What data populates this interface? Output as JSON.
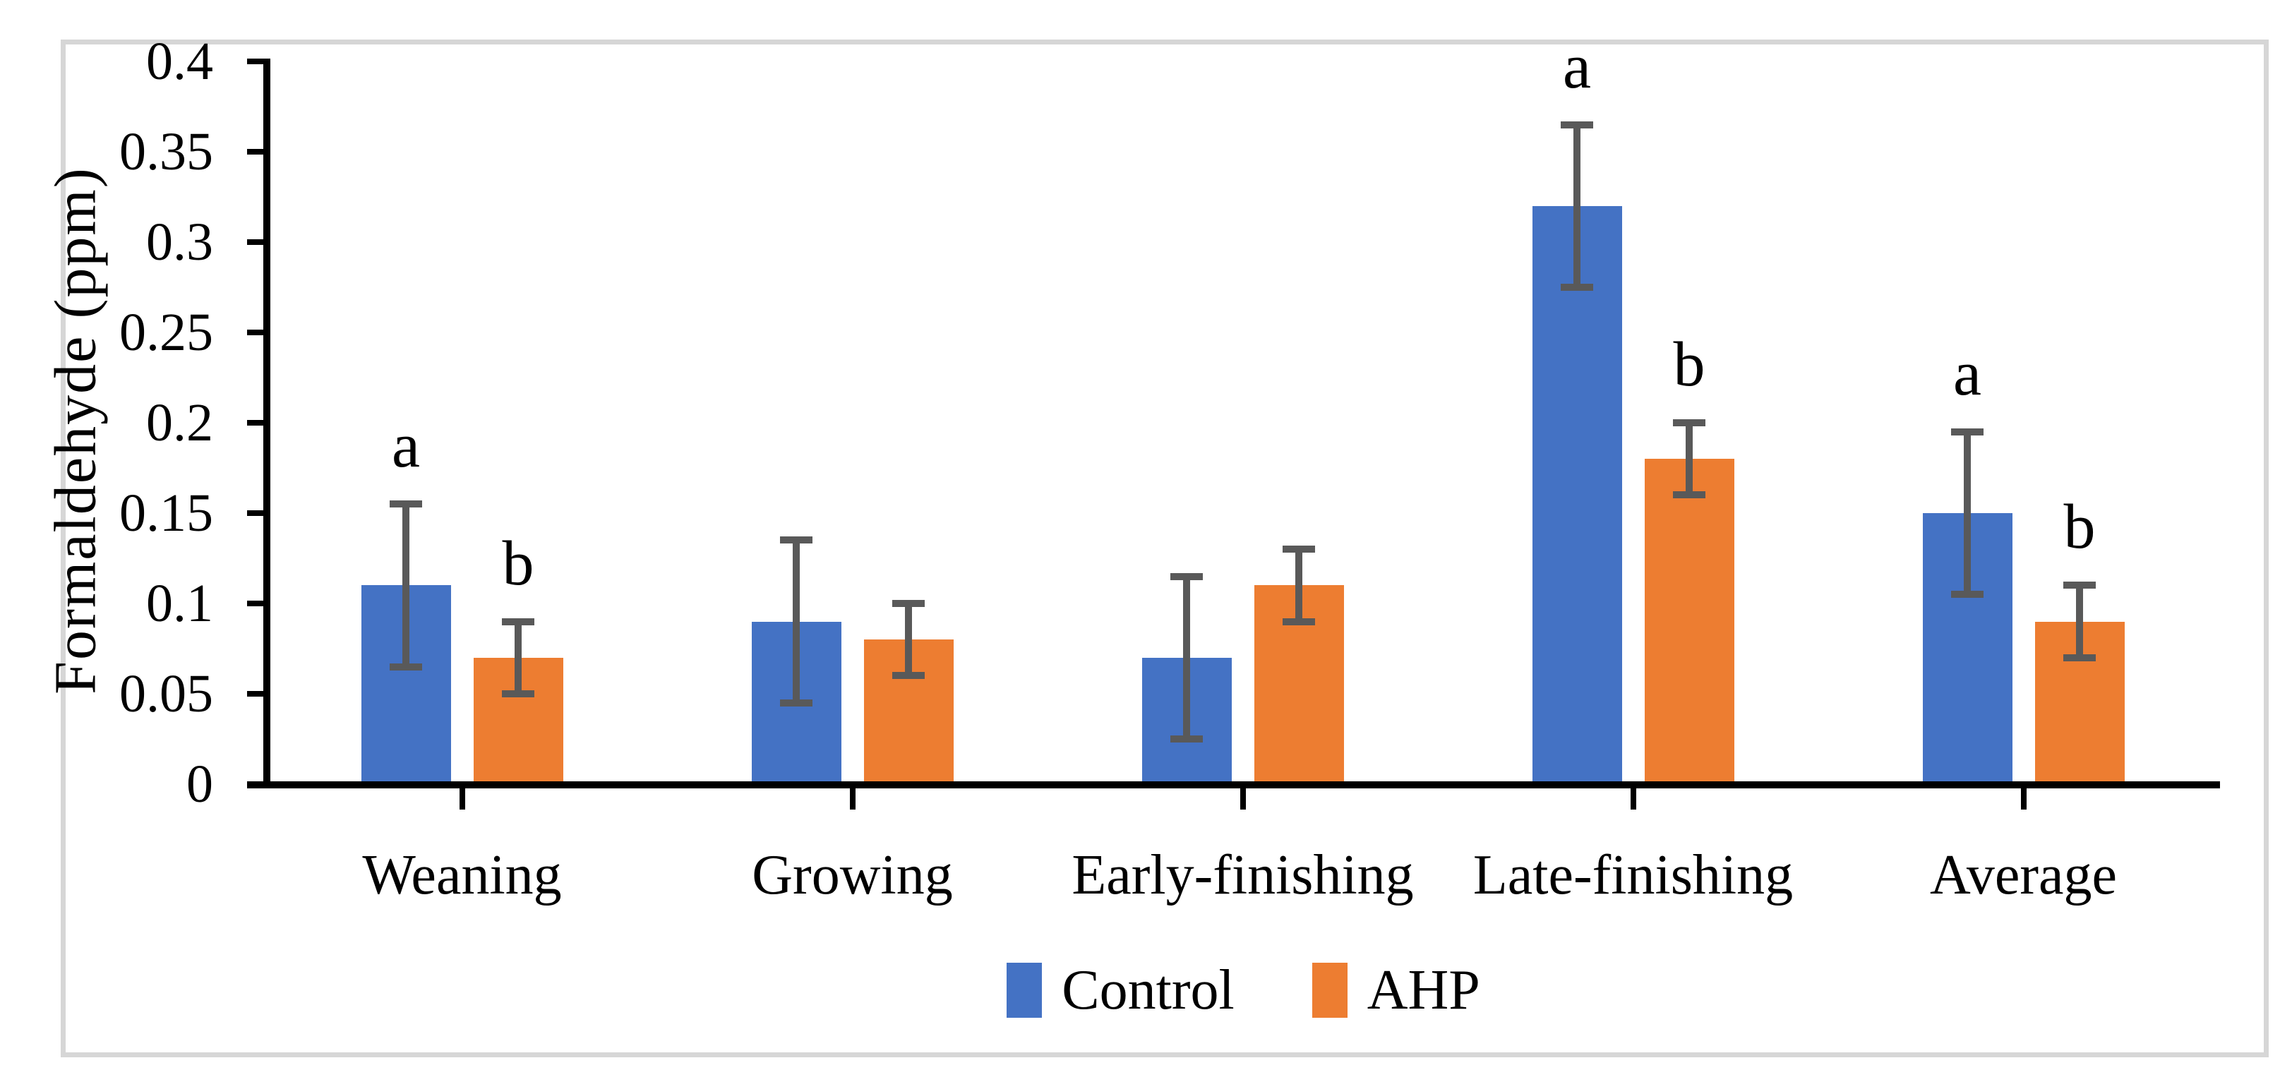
{
  "figure": {
    "background": "#FFFFFF",
    "border_color": "#D6D6D6"
  },
  "chart_data": {
    "type": "bar",
    "title": "",
    "ylabel": "Formaldehyde (ppm)",
    "xlabel": "",
    "categories": [
      "Weaning",
      "Growing",
      "Early-finishing",
      "Late-finishing",
      "Average"
    ],
    "series": [
      {
        "name": "Control",
        "color": "#4472C4",
        "values": [
          0.11,
          0.09,
          0.07,
          0.32,
          0.15
        ],
        "error": [
          0.045,
          0.045,
          0.045,
          0.045,
          0.045
        ],
        "sig_letters": [
          "a",
          "",
          "",
          "a",
          "a"
        ]
      },
      {
        "name": "AHP",
        "color": "#ED7D31",
        "values": [
          0.07,
          0.08,
          0.11,
          0.18,
          0.09
        ],
        "error": [
          0.02,
          0.02,
          0.02,
          0.02,
          0.02
        ],
        "sig_letters": [
          "b",
          "",
          "",
          "b",
          "b"
        ]
      }
    ],
    "y_ticks": [
      "0",
      "0.05",
      "0.1",
      "0.15",
      "0.2",
      "0.25",
      "0.3",
      "0.35",
      "0.4"
    ],
    "ylim": [
      0,
      0.4
    ],
    "grid": false,
    "legend_position": "bottom",
    "error_bar_color": "#595959",
    "axis_color": "#000000"
  }
}
